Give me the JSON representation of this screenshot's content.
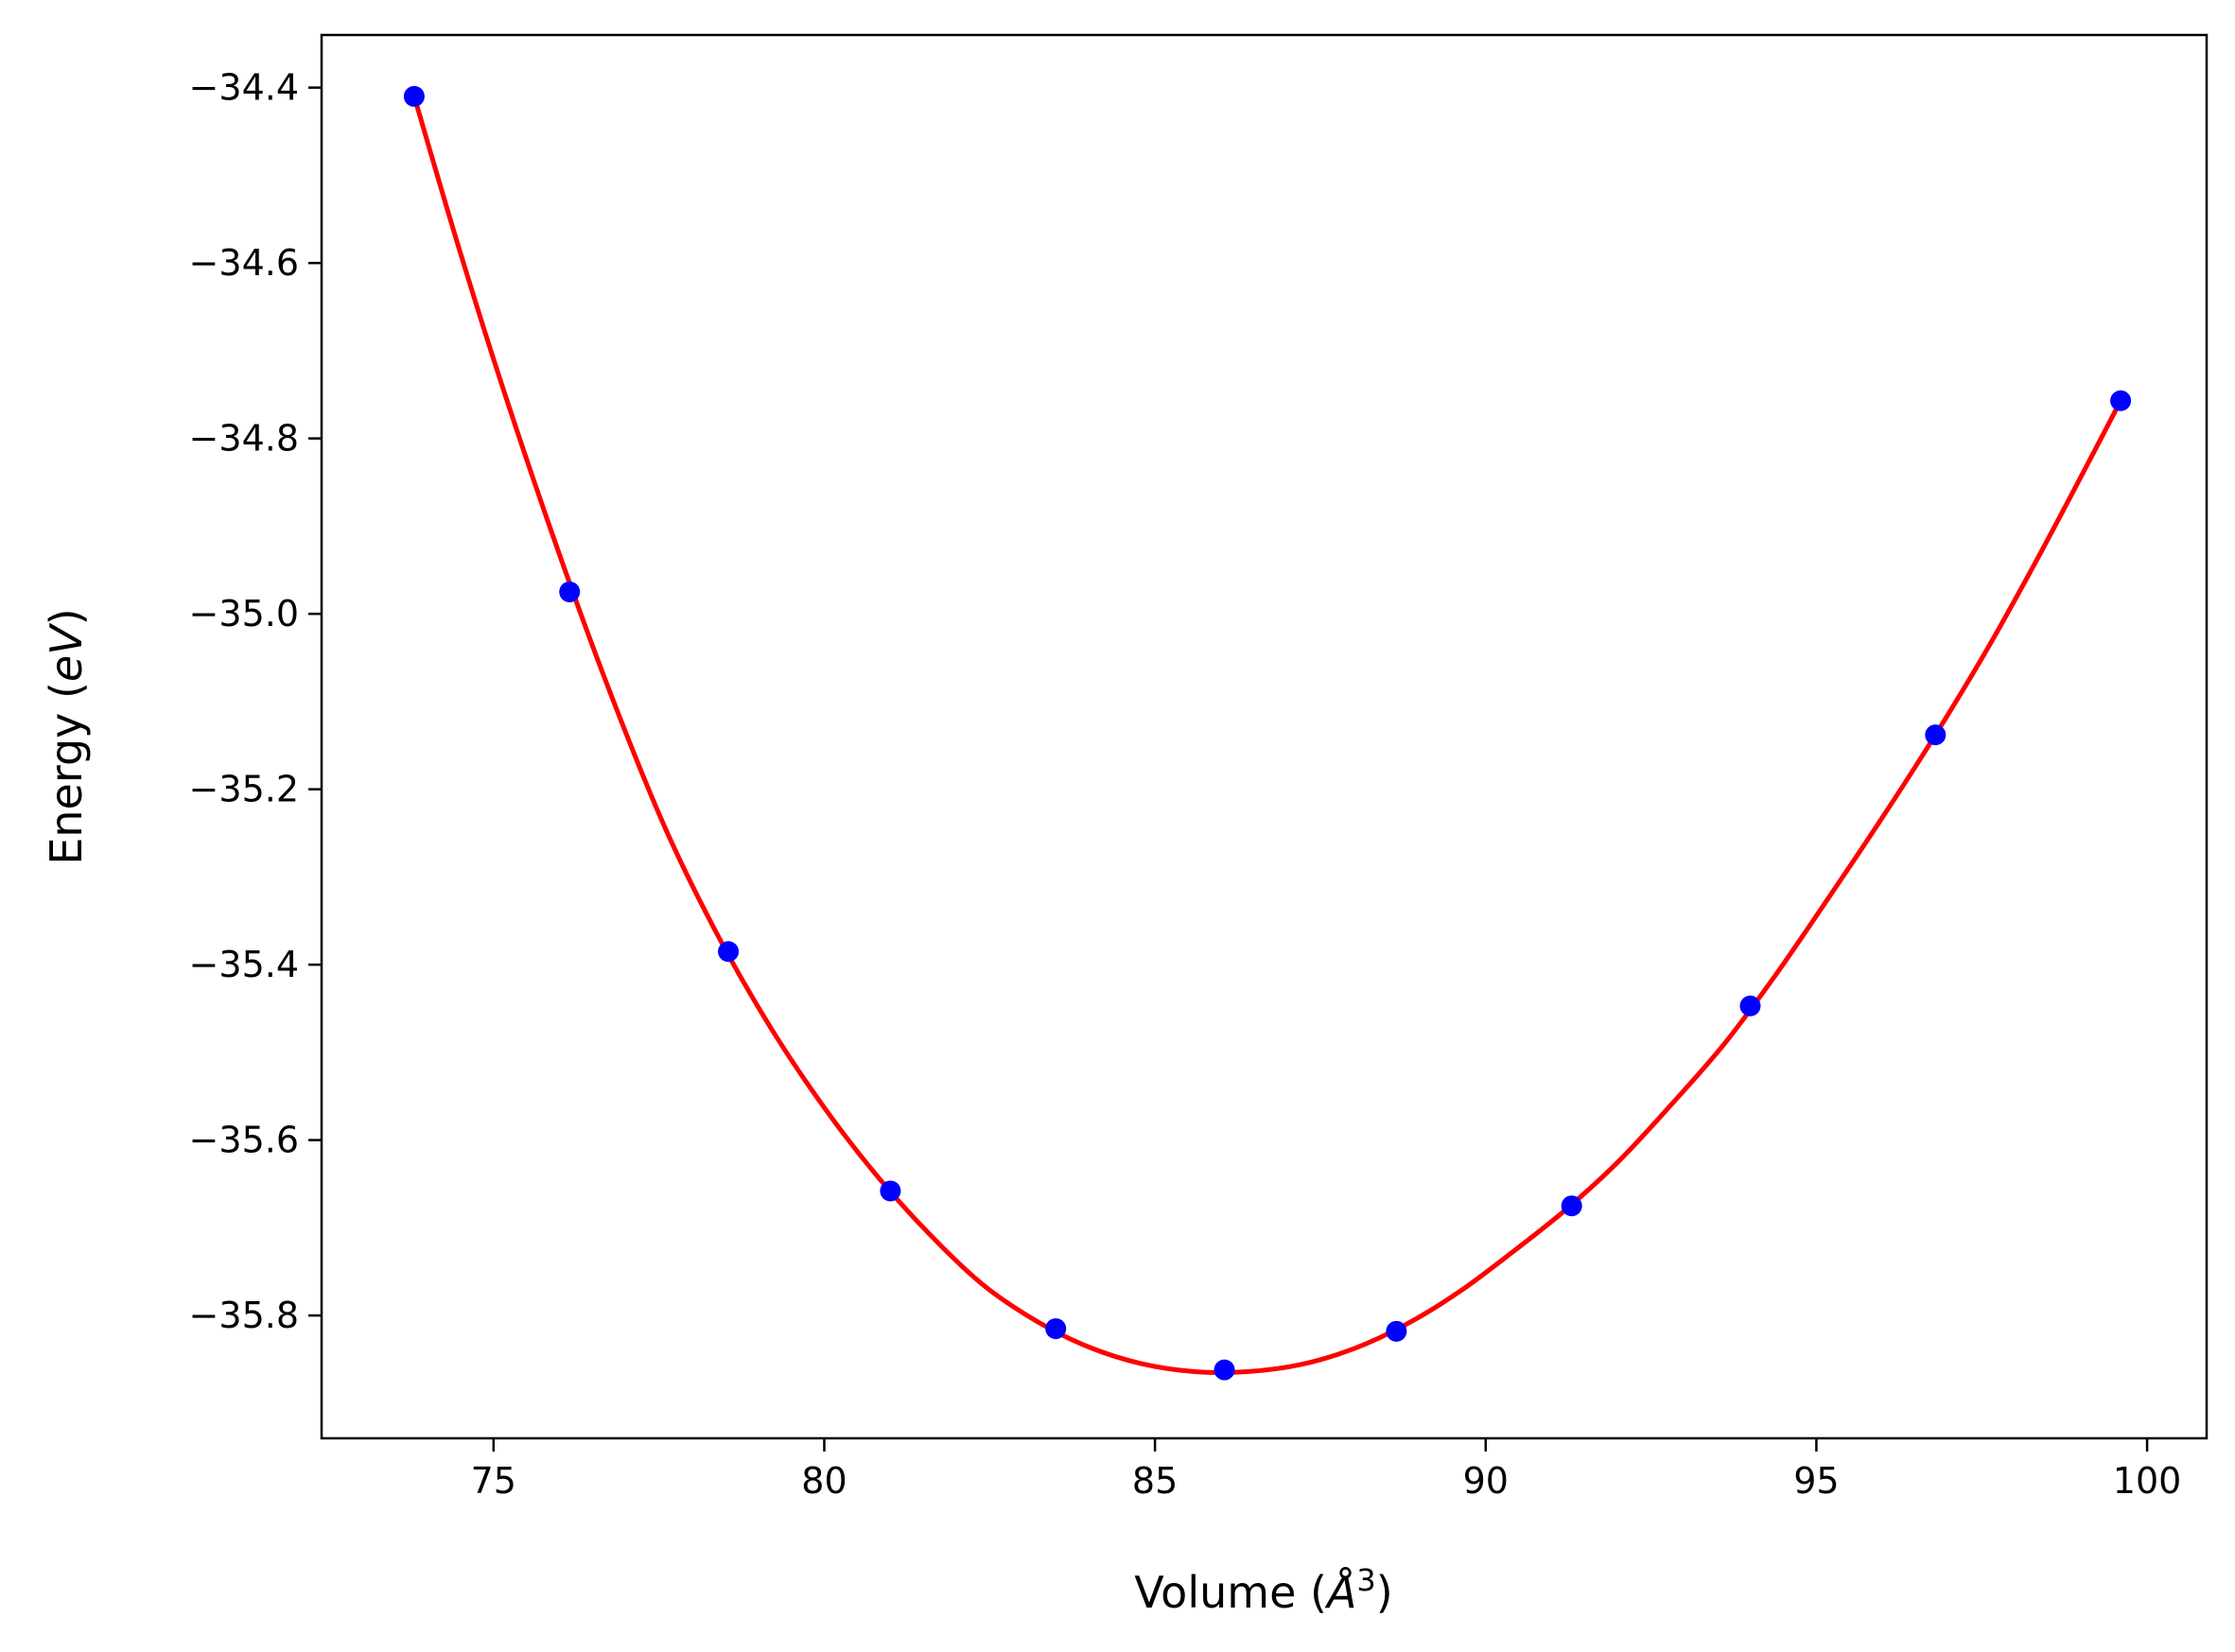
{
  "chart_data": {
    "type": "scatter",
    "xlabel": {
      "prefix": "Volume (",
      "italic": "Å",
      "sup": "3",
      "suffix": ")"
    },
    "ylabel": {
      "prefix": "Energy (",
      "italic": "eV",
      "suffix": ")"
    },
    "xlim": [
      72.4,
      100.9
    ],
    "ylim": [
      -35.94,
      -34.34
    ],
    "x_ticks": [
      75,
      80,
      85,
      90,
      95,
      100
    ],
    "x_tick_labels": [
      "75",
      "80",
      "85",
      "90",
      "95",
      "100"
    ],
    "y_ticks": [
      -34.4,
      -34.6,
      -34.8,
      -35.0,
      -35.2,
      -35.4,
      -35.6,
      -35.8
    ],
    "y_tick_labels": [
      "−34.4",
      "−34.6",
      "−34.8",
      "−35.0",
      "−35.2",
      "−35.4",
      "−35.6",
      "−35.8"
    ],
    "grid": false,
    "series": [
      {
        "kind": "points",
        "color": "#0000ff",
        "x": [
          73.8,
          76.15,
          78.55,
          81.0,
          83.5,
          86.05,
          88.65,
          91.3,
          94.0,
          96.8,
          99.6
        ],
        "y": [
          -34.41,
          -34.975,
          -35.385,
          -35.658,
          -35.815,
          -35.862,
          -35.818,
          -35.675,
          -35.447,
          -35.138,
          -34.757
        ]
      },
      {
        "kind": "fit-curve",
        "color": "#ff0000",
        "x": [
          73.8,
          74.5,
          75.2,
          76.0,
          76.8,
          77.6,
          78.4,
          79.2,
          80.0,
          80.8,
          81.6,
          82.4,
          83.2,
          84.0,
          84.8,
          85.6,
          86.4,
          87.2,
          88.0,
          88.8,
          89.6,
          90.4,
          91.2,
          92.0,
          92.8,
          93.6,
          94.4,
          95.2,
          96.0,
          96.8,
          97.6,
          98.4,
          99.2,
          99.6
        ],
        "y": [
          -34.41,
          -34.589,
          -34.756,
          -34.933,
          -35.097,
          -35.245,
          -35.368,
          -35.473,
          -35.563,
          -35.641,
          -35.708,
          -35.765,
          -35.806,
          -35.836,
          -35.855,
          -35.864,
          -35.864,
          -35.856,
          -35.838,
          -35.81,
          -35.773,
          -35.728,
          -35.68,
          -35.625,
          -35.56,
          -35.491,
          -35.41,
          -35.322,
          -35.232,
          -35.138,
          -35.038,
          -34.929,
          -34.815,
          -34.757
        ]
      }
    ]
  }
}
